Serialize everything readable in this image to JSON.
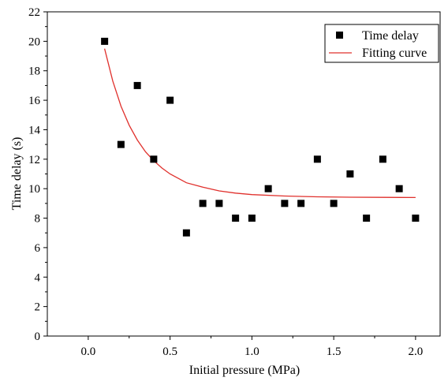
{
  "chart_data": {
    "type": "scatter",
    "xlabel": "Initial pressure (MPa)",
    "ylabel": "Time delay (s)",
    "xlim": [
      -0.25,
      2.15
    ],
    "ylim": [
      0,
      22
    ],
    "x_ticks": [
      0.0,
      0.5,
      1.0,
      1.5,
      2.0
    ],
    "x_tick_labels": [
      "0.0",
      "0.5",
      "1.0",
      "1.5",
      "2.0"
    ],
    "y_ticks": [
      0,
      2,
      4,
      6,
      8,
      10,
      12,
      14,
      16,
      18,
      20,
      22
    ],
    "y_tick_labels": [
      "0",
      "2",
      "4",
      "6",
      "8",
      "10",
      "12",
      "14",
      "16",
      "18",
      "20",
      "22"
    ],
    "grid": false,
    "legend_position": "top-right",
    "series": [
      {
        "name": "Time delay",
        "kind": "scatter",
        "marker": "square",
        "color": "#000000",
        "x": [
          0.1,
          0.2,
          0.3,
          0.4,
          0.5,
          0.6,
          0.7,
          0.8,
          0.9,
          1.0,
          1.1,
          1.2,
          1.3,
          1.4,
          1.5,
          1.6,
          1.7,
          1.8,
          1.9,
          2.0
        ],
        "y": [
          20,
          13,
          17,
          12,
          16,
          7,
          9,
          9,
          8,
          8,
          10,
          9,
          9,
          12,
          9,
          11,
          8,
          12,
          10,
          8
        ]
      },
      {
        "name": "Fitting curve",
        "kind": "line",
        "color": "#e0302c",
        "x": [
          0.1,
          0.15,
          0.2,
          0.25,
          0.3,
          0.35,
          0.4,
          0.45,
          0.5,
          0.6,
          0.7,
          0.8,
          0.9,
          1.0,
          1.2,
          1.4,
          1.6,
          1.8,
          2.0
        ],
        "y": [
          19.5,
          17.3,
          15.6,
          14.3,
          13.3,
          12.5,
          11.9,
          11.4,
          11.0,
          10.4,
          10.1,
          9.85,
          9.7,
          9.6,
          9.5,
          9.45,
          9.42,
          9.41,
          9.4
        ]
      }
    ]
  }
}
